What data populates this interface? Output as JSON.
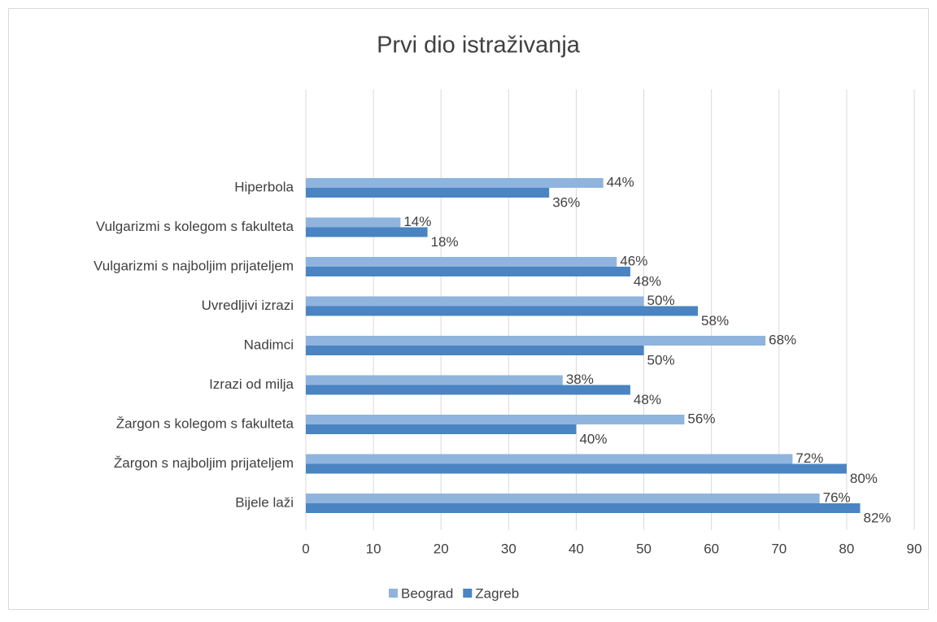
{
  "chart_data": {
    "type": "bar",
    "orientation": "horizontal",
    "title": "Prvi dio istraživanja",
    "categories": [
      "Hiperbola",
      "Vulgarizmi s kolegom s fakulteta",
      "Vulgarizmi s najboljim prijateljem",
      "Uvredljivi izrazi",
      "Nadimci",
      "Izrazi od milja",
      "Žargon s kolegom s fakulteta",
      "Žargon s najboljim prijateljem",
      "Bijele laži"
    ],
    "series": [
      {
        "name": "Beograd",
        "color": "#8fb4de",
        "values": [
          44,
          14,
          46,
          50,
          68,
          38,
          56,
          72,
          76
        ],
        "value_labels": [
          "44%",
          "14%",
          "46%",
          "50%",
          "68%",
          "38%",
          "56%",
          "72%",
          "76%"
        ]
      },
      {
        "name": "Zagreb",
        "color": "#4a84c2",
        "values": [
          36,
          18,
          48,
          58,
          50,
          48,
          40,
          80,
          82
        ],
        "value_labels": [
          "36%",
          "18%",
          "48%",
          "58%",
          "50%",
          "48%",
          "40%",
          "80%",
          "82%"
        ]
      }
    ],
    "xlim": [
      0,
      90
    ],
    "xticks": [
      0,
      10,
      20,
      30,
      40,
      50,
      60,
      70,
      80,
      90
    ],
    "grid": true,
    "legend": "bottom"
  }
}
